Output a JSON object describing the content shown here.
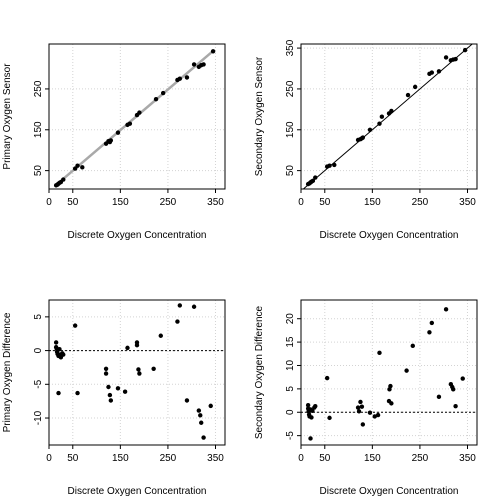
{
  "chart_data": [
    {
      "type": "scatter",
      "xlabel": "Discrete Oxygen Concentration",
      "ylabel": "Primary Oxygen Sensor",
      "xlim": [
        0,
        370
      ],
      "ylim": [
        5,
        360
      ],
      "xticks": [
        0,
        50,
        150,
        250,
        350
      ],
      "xtick_labels": [
        "0",
        "50",
        "150",
        "250",
        "350"
      ],
      "yticks": [
        50,
        150,
        250
      ],
      "ytick_labels": [
        "50",
        "150",
        "250"
      ],
      "grid": true,
      "reference_line": {
        "type": "smooth",
        "color": "#a9a9a9",
        "from": [
          15,
          15
        ],
        "to": [
          345,
          343
        ]
      },
      "x": [
        15,
        18,
        20,
        22,
        25,
        30,
        55,
        60,
        70,
        120,
        125,
        128,
        130,
        145,
        165,
        170,
        185,
        190,
        225,
        240,
        270,
        275,
        290,
        305,
        315,
        320,
        325,
        345
      ],
      "y": [
        14,
        16,
        18,
        20,
        22,
        28,
        55,
        62,
        58,
        116,
        122,
        120,
        124,
        143,
        162,
        165,
        186,
        192,
        225,
        240,
        272,
        275,
        278,
        310,
        304,
        308,
        310,
        342
      ]
    },
    {
      "type": "scatter",
      "xlabel": "Discrete Oxygen Concentration",
      "ylabel": "Secondary Oxygen Sensor",
      "xlim": [
        0,
        370
      ],
      "ylim": [
        5,
        360
      ],
      "xticks": [
        0,
        50,
        150,
        250,
        350
      ],
      "xtick_labels": [
        "0",
        "50",
        "150",
        "250",
        "350"
      ],
      "yticks": [
        50,
        150,
        250,
        350
      ],
      "ytick_labels": [
        "50",
        "150",
        "250",
        "350"
      ],
      "grid": true,
      "reference_line": {
        "type": "identity",
        "color": "#000000",
        "from": [
          0,
          0
        ],
        "to": [
          370,
          370
        ]
      },
      "x": [
        15,
        18,
        20,
        22,
        25,
        30,
        55,
        60,
        70,
        120,
        125,
        128,
        130,
        145,
        165,
        170,
        185,
        190,
        225,
        240,
        270,
        275,
        290,
        305,
        315,
        320,
        325,
        345
      ],
      "y": [
        17,
        19,
        21,
        23,
        25,
        33,
        60,
        62,
        64,
        125,
        127,
        129,
        131,
        150,
        165,
        182,
        190,
        196,
        235,
        255,
        287,
        290,
        293,
        327,
        320,
        322,
        323,
        345
      ]
    },
    {
      "type": "scatter",
      "xlabel": "Discrete Oxygen Concentration",
      "ylabel": "Primary Oxygen Difference",
      "xlim": [
        0,
        370
      ],
      "ylim": [
        -14,
        7.5
      ],
      "xticks": [
        0,
        50,
        150,
        250,
        350
      ],
      "xtick_labels": [
        "0",
        "50",
        "150",
        "250",
        "350"
      ],
      "yticks": [
        5,
        0,
        -5,
        -10
      ],
      "ytick_labels": [
        "5",
        "0",
        "-5",
        "-10"
      ],
      "grid": true,
      "reference_line": {
        "type": "hline",
        "style": "dotted",
        "color": "#000000",
        "y": 0
      },
      "x": [
        15,
        15,
        16,
        17,
        18,
        20,
        20,
        22,
        24,
        25,
        28,
        30,
        55,
        60,
        120,
        120,
        125,
        128,
        130,
        145,
        160,
        165,
        185,
        185,
        188,
        190,
        220,
        235,
        270,
        275,
        290,
        305,
        315,
        318,
        320,
        325,
        340
      ],
      "y": [
        1.2,
        0.5,
        0.3,
        -0.2,
        -0.5,
        -0.8,
        -6.3,
        0.2,
        -0.6,
        -1.0,
        -0.4,
        -0.6,
        3.7,
        -6.3,
        -2.7,
        -3.4,
        -5.4,
        -6.6,
        -7.4,
        -5.6,
        -6.1,
        0.4,
        0.8,
        1.2,
        -2.8,
        -3.4,
        -2.7,
        2.2,
        4.3,
        6.7,
        -7.4,
        6.5,
        -8.9,
        -9.6,
        -10.7,
        -12.9,
        -8.2
      ]
    },
    {
      "type": "scatter",
      "xlabel": "Discrete Oxygen Concentration",
      "ylabel": "Secondary Oxygen Difference",
      "xlim": [
        0,
        370
      ],
      "ylim": [
        -7,
        24
      ],
      "xticks": [
        0,
        50,
        150,
        250,
        350
      ],
      "xtick_labels": [
        "0",
        "50",
        "150",
        "250",
        "350"
      ],
      "yticks": [
        -5,
        0,
        5,
        10,
        15,
        20
      ],
      "ytick_labels": [
        "-5",
        "0",
        "5",
        "10",
        "15",
        "20"
      ],
      "grid": true,
      "reference_line": {
        "type": "hline",
        "style": "dotted",
        "color": "#000000",
        "y": 0
      },
      "x": [
        15,
        15,
        16,
        17,
        18,
        20,
        20,
        22,
        24,
        28,
        30,
        55,
        60,
        120,
        122,
        125,
        128,
        130,
        145,
        155,
        162,
        165,
        185,
        186,
        188,
        190,
        222,
        235,
        270,
        275,
        290,
        305,
        315,
        318,
        320,
        325,
        340
      ],
      "y": [
        1.5,
        0.8,
        0.2,
        -0.5,
        -0.9,
        0.6,
        -5.6,
        -1.1,
        0.3,
        1.0,
        1.3,
        7.3,
        -1.2,
        1.0,
        0.2,
        2.2,
        1.2,
        -2.6,
        -0.1,
        -0.9,
        -0.6,
        12.7,
        2.4,
        4.9,
        5.6,
        1.9,
        8.9,
        14.2,
        17.1,
        19.1,
        3.3,
        22.0,
        6.0,
        5.4,
        4.9,
        1.3,
        7.2
      ]
    }
  ]
}
